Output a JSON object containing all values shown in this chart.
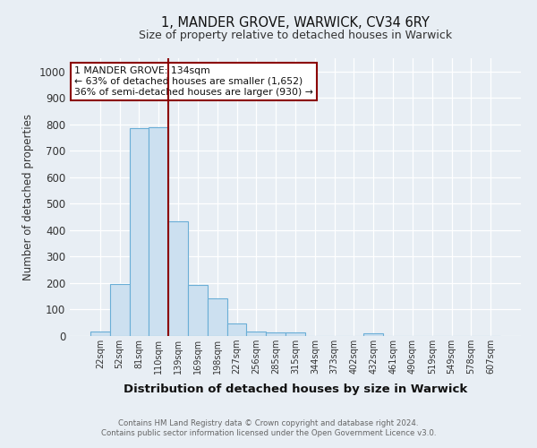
{
  "title": "1, MANDER GROVE, WARWICK, CV34 6RY",
  "subtitle": "Size of property relative to detached houses in Warwick",
  "xlabel": "Distribution of detached houses by size in Warwick",
  "ylabel": "Number of detached properties",
  "bar_values": [
    18,
    195,
    785,
    790,
    435,
    192,
    142,
    48,
    17,
    13,
    12,
    0,
    0,
    0,
    9,
    0,
    0,
    0,
    0,
    0,
    0
  ],
  "bar_labels": [
    "22sqm",
    "52sqm",
    "81sqm",
    "110sqm",
    "139sqm",
    "169sqm",
    "198sqm",
    "227sqm",
    "256sqm",
    "285sqm",
    "315sqm",
    "344sqm",
    "373sqm",
    "402sqm",
    "432sqm",
    "461sqm",
    "490sqm",
    "519sqm",
    "549sqm",
    "578sqm",
    "607sqm"
  ],
  "bar_color": "#cce0f0",
  "bar_edge_color": "#6aaed6",
  "vline_x": 3.5,
  "vline_color": "#8b0000",
  "annotation_box_color": "#8b0000",
  "annotation_lines": [
    "1 MANDER GROVE: 134sqm",
    "← 63% of detached houses are smaller (1,652)",
    "36% of semi-detached houses are larger (930) →"
  ],
  "ylim": [
    0,
    1050
  ],
  "yticks": [
    0,
    100,
    200,
    300,
    400,
    500,
    600,
    700,
    800,
    900,
    1000
  ],
  "footer_line1": "Contains HM Land Registry data © Crown copyright and database right 2024.",
  "footer_line2": "Contains public sector information licensed under the Open Government Licence v3.0.",
  "bg_color": "#e8eef4",
  "plot_bg_color": "#e8eef4"
}
